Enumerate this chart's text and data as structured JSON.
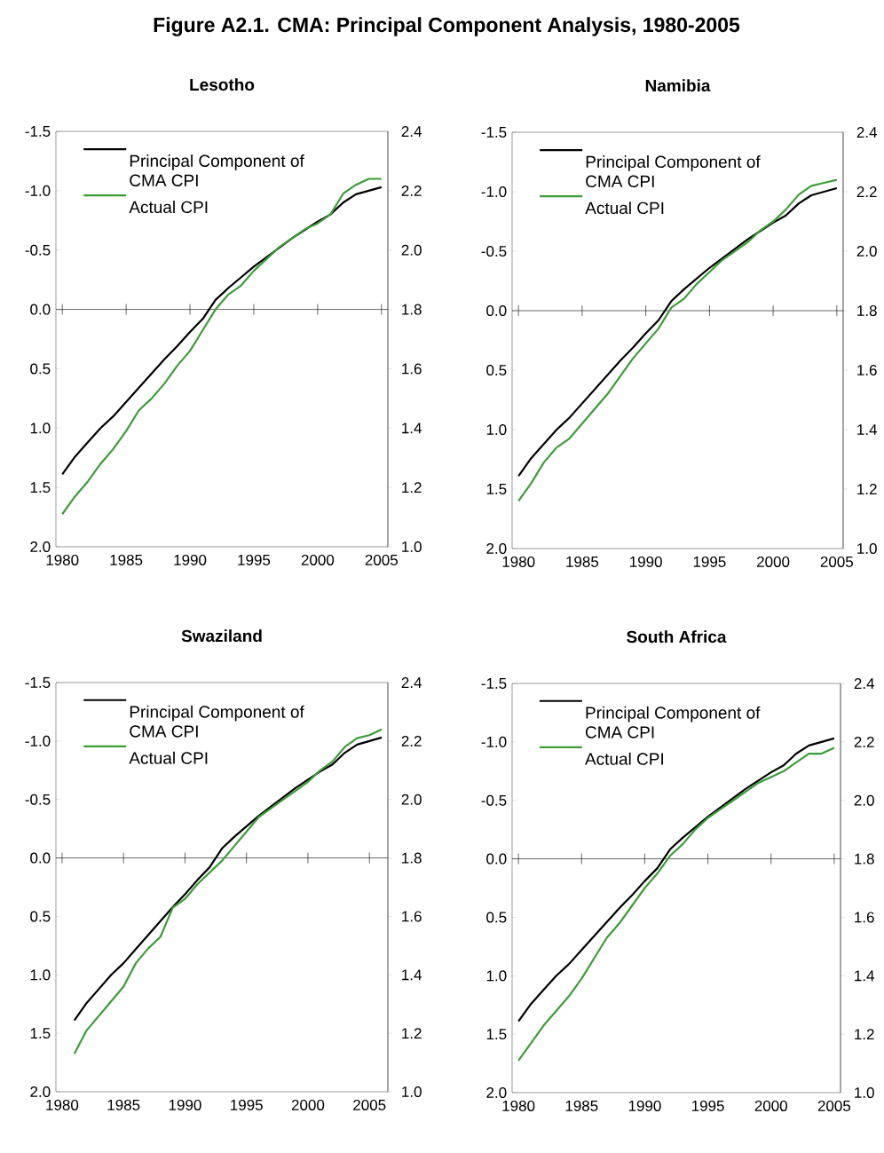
{
  "chart_data": [
    {
      "type": "line",
      "title": "Lesotho",
      "annotations": [
        "Figure A2.1. CMA: Principal Component Analysis, 1980-2005"
      ],
      "x": [
        1980,
        1981,
        1982,
        1983,
        1984,
        1985,
        1986,
        1987,
        1988,
        1989,
        1990,
        1991,
        1992,
        1993,
        1994,
        1995,
        1996,
        1997,
        1998,
        1999,
        2000,
        2001,
        2002,
        2003,
        2004,
        2005
      ],
      "series": [
        {
          "name": "Principal Component of CMA CPI",
          "color": "#000000",
          "values": [
            1.39,
            1.24,
            1.12,
            1.0,
            0.9,
            0.78,
            0.66,
            0.54,
            0.42,
            0.31,
            0.19,
            0.08,
            -0.08,
            -0.18,
            -0.27,
            -0.36,
            -0.44,
            -0.52,
            -0.6,
            -0.67,
            -0.74,
            -0.8,
            -0.9,
            -0.97,
            -1.0,
            -1.03
          ]
        },
        {
          "name": "Actual CPI",
          "color": "#3a9e35",
          "axis": "y2",
          "values": [
            1.11,
            1.17,
            1.22,
            1.28,
            1.33,
            1.39,
            1.46,
            1.5,
            1.55,
            1.61,
            1.66,
            1.73,
            1.8,
            1.85,
            1.88,
            1.93,
            1.97,
            2.01,
            2.04,
            2.07,
            2.09,
            2.12,
            2.19,
            2.22,
            2.24,
            2.24
          ]
        }
      ],
      "xlim": [
        1979.5,
        2005.5
      ],
      "xticks": [
        1980,
        1985,
        1990,
        1995,
        2000,
        2005
      ],
      "ylim": [
        2.0,
        -1.5
      ],
      "yticks": [
        {
          "value": -1.5,
          "label": "-1.5"
        },
        {
          "value": -1.0,
          "label": "-1.0"
        },
        {
          "value": -0.5,
          "label": "-0.5"
        },
        {
          "value": 0,
          "label": "0.0"
        },
        {
          "value": 0.5,
          "label": "0.5"
        },
        {
          "value": 1.0,
          "label": "1.0"
        },
        {
          "value": 1.5,
          "label": "1.5"
        },
        {
          "value": 2.0,
          "label": "2.0"
        }
      ],
      "y2lim": [
        1.0,
        2.4
      ],
      "y2ticks": [
        {
          "value": 1.0,
          "label": "1.0"
        },
        {
          "value": 1.2,
          "label": "1.2"
        },
        {
          "value": 1.4,
          "label": "1.4"
        },
        {
          "value": 1.6,
          "label": "1.6"
        },
        {
          "value": 1.8,
          "label": "1.8"
        },
        {
          "value": 2.0,
          "label": "2.0"
        },
        {
          "value": 2.2,
          "label": "2.2"
        },
        {
          "value": 2.4,
          "label": "2.4"
        }
      ],
      "ref_lines": [
        {
          "axis": "y",
          "value": 0
        }
      ],
      "legend": "top left",
      "marker": "none",
      "line_style": "solid"
    },
    {
      "type": "line",
      "title": "Namibia",
      "x": [
        1980,
        1981,
        1982,
        1983,
        1984,
        1985,
        1986,
        1987,
        1988,
        1989,
        1990,
        1991,
        1992,
        1993,
        1994,
        1995,
        1996,
        1997,
        1998,
        1999,
        2000,
        2001,
        2002,
        2003,
        2004,
        2005
      ],
      "series": [
        {
          "name": "Principal Component of CMA CPI",
          "color": "#000000",
          "values": [
            1.39,
            1.24,
            1.12,
            1.0,
            0.9,
            0.78,
            0.66,
            0.54,
            0.42,
            0.31,
            0.19,
            0.08,
            -0.08,
            -0.18,
            -0.27,
            -0.36,
            -0.44,
            -0.52,
            -0.6,
            -0.67,
            -0.74,
            -0.8,
            -0.9,
            -0.97,
            -1.0,
            -1.03
          ]
        },
        {
          "name": "Actual CPI",
          "color": "#3a9e35",
          "axis": "y2",
          "values": [
            1.16,
            1.22,
            1.29,
            1.34,
            1.37,
            1.42,
            1.47,
            1.52,
            1.58,
            1.64,
            1.69,
            1.74,
            1.81,
            1.84,
            1.89,
            1.93,
            1.97,
            2.0,
            2.03,
            2.07,
            2.1,
            2.14,
            2.19,
            2.22,
            2.23,
            2.24
          ]
        }
      ],
      "xlim": [
        1979.5,
        2005.5
      ],
      "xticks": [
        1980,
        1985,
        1990,
        1995,
        2000,
        2005
      ],
      "ylim": [
        2.0,
        -1.5
      ],
      "yticks": [
        {
          "value": -1.5,
          "label": "-1.5"
        },
        {
          "value": -1.0,
          "label": "-1.0"
        },
        {
          "value": -0.5,
          "label": "-0.5"
        },
        {
          "value": 0,
          "label": "0.0"
        },
        {
          "value": 0.5,
          "label": "0.5"
        },
        {
          "value": 1.0,
          "label": "1.0"
        },
        {
          "value": 1.5,
          "label": "1.5"
        },
        {
          "value": 2.0,
          "label": "2.0"
        }
      ],
      "y2lim": [
        1.0,
        2.4
      ],
      "y2ticks": [
        {
          "value": 1.0,
          "label": "1.0"
        },
        {
          "value": 1.2,
          "label": "1.2"
        },
        {
          "value": 1.4,
          "label": "1.4"
        },
        {
          "value": 1.6,
          "label": "1.6"
        },
        {
          "value": 1.8,
          "label": "1.8"
        },
        {
          "value": 2.0,
          "label": "2.0"
        },
        {
          "value": 2.2,
          "label": "2.2"
        },
        {
          "value": 2.4,
          "label": "2.4"
        }
      ],
      "ref_lines": [
        {
          "axis": "y",
          "value": 0
        }
      ],
      "legend": "top left",
      "marker": "none",
      "line_style": "solid"
    },
    {
      "type": "line",
      "title": "Swaziland",
      "x": [
        1981,
        1982,
        1983,
        1984,
        1985,
        1986,
        1987,
        1988,
        1989,
        1990,
        1991,
        1992,
        1993,
        1994,
        1995,
        1996,
        1997,
        1998,
        1999,
        2000,
        2001,
        2002,
        2003,
        2004,
        2005,
        2006
      ],
      "series": [
        {
          "name": "Principal Component of CMA CPI",
          "color": "#000000",
          "values": [
            1.39,
            1.24,
            1.12,
            1.0,
            0.9,
            0.78,
            0.66,
            0.54,
            0.42,
            0.31,
            0.19,
            0.08,
            -0.08,
            -0.18,
            -0.27,
            -0.36,
            -0.44,
            -0.52,
            -0.6,
            -0.67,
            -0.74,
            -0.8,
            -0.9,
            -0.97,
            -1.0,
            -1.03
          ]
        },
        {
          "name": "Actual CPI",
          "color": "#3a9e35",
          "axis": "y2",
          "values": [
            1.13,
            1.21,
            1.26,
            1.31,
            1.36,
            1.44,
            1.49,
            1.53,
            1.63,
            1.66,
            1.71,
            1.75,
            1.79,
            1.84,
            1.89,
            1.94,
            1.97,
            2.0,
            2.03,
            2.06,
            2.1,
            2.13,
            2.18,
            2.21,
            2.22,
            2.24
          ]
        }
      ],
      "xlim": [
        1979.5,
        2006.5
      ],
      "xticks": [
        1980,
        1985,
        1990,
        1995,
        2000,
        2005
      ],
      "ylim": [
        2.0,
        -1.5
      ],
      "yticks": [
        {
          "value": -1.5,
          "label": "-1.5"
        },
        {
          "value": -1.0,
          "label": "-1.0"
        },
        {
          "value": -0.5,
          "label": "-0.5"
        },
        {
          "value": 0,
          "label": "0.0"
        },
        {
          "value": 0.5,
          "label": "0.5"
        },
        {
          "value": 1.0,
          "label": "1.0"
        },
        {
          "value": 1.5,
          "label": "1.5"
        },
        {
          "value": 2.0,
          "label": "2.0"
        }
      ],
      "y2lim": [
        1.0,
        2.4
      ],
      "y2ticks": [
        {
          "value": 1.0,
          "label": "1.0"
        },
        {
          "value": 1.2,
          "label": "1.2"
        },
        {
          "value": 1.4,
          "label": "1.4"
        },
        {
          "value": 1.6,
          "label": "1.6"
        },
        {
          "value": 1.8,
          "label": "1.8"
        },
        {
          "value": 2.0,
          "label": "2.0"
        },
        {
          "value": 2.2,
          "label": "2.2"
        },
        {
          "value": 2.4,
          "label": "2.4"
        }
      ],
      "ref_lines": [
        {
          "axis": "y",
          "value": 0
        }
      ],
      "legend": "top left",
      "marker": "none",
      "line_style": "solid"
    },
    {
      "type": "line",
      "title": "South Africa",
      "x": [
        1980,
        1981,
        1982,
        1983,
        1984,
        1985,
        1986,
        1987,
        1988,
        1989,
        1990,
        1991,
        1992,
        1993,
        1994,
        1995,
        1996,
        1997,
        1998,
        1999,
        2000,
        2001,
        2002,
        2003,
        2004,
        2005
      ],
      "series": [
        {
          "name": "Principal Component of CMA CPI",
          "color": "#000000",
          "values": [
            1.39,
            1.24,
            1.12,
            1.0,
            0.9,
            0.78,
            0.66,
            0.54,
            0.42,
            0.31,
            0.19,
            0.08,
            -0.08,
            -0.18,
            -0.27,
            -0.36,
            -0.44,
            -0.52,
            -0.6,
            -0.67,
            -0.74,
            -0.8,
            -0.9,
            -0.97,
            -1.0,
            -1.03
          ]
        },
        {
          "name": "Actual CPI",
          "color": "#3a9e35",
          "axis": "y2",
          "values": [
            1.11,
            1.17,
            1.23,
            1.28,
            1.33,
            1.39,
            1.46,
            1.53,
            1.58,
            1.64,
            1.7,
            1.75,
            1.81,
            1.85,
            1.9,
            1.94,
            1.97,
            2.0,
            2.03,
            2.06,
            2.08,
            2.1,
            2.13,
            2.16,
            2.16,
            2.18
          ]
        }
      ],
      "xlim": [
        1979.5,
        2005.5
      ],
      "xticks": [
        1980,
        1985,
        1990,
        1995,
        2000,
        2005
      ],
      "ylim": [
        2.0,
        -1.5
      ],
      "yticks": [
        {
          "value": -1.5,
          "label": "-1.5"
        },
        {
          "value": -1.0,
          "label": "-1.0"
        },
        {
          "value": -0.5,
          "label": "-0.5"
        },
        {
          "value": 0,
          "label": "0.0"
        },
        {
          "value": 0.5,
          "label": "0.5"
        },
        {
          "value": 1.0,
          "label": "1.0"
        },
        {
          "value": 1.5,
          "label": "1.5"
        },
        {
          "value": 2.0,
          "label": "2.0"
        }
      ],
      "y2lim": [
        1.0,
        2.4
      ],
      "y2ticks": [
        {
          "value": 1.0,
          "label": "1.0"
        },
        {
          "value": 1.2,
          "label": "1.2"
        },
        {
          "value": 1.4,
          "label": "1.4"
        },
        {
          "value": 1.6,
          "label": "1.6"
        },
        {
          "value": 1.8,
          "label": "1.8"
        },
        {
          "value": 2.0,
          "label": "2.0"
        },
        {
          "value": 2.2,
          "label": "2.2"
        },
        {
          "value": 2.4,
          "label": "2.4"
        }
      ],
      "ref_lines": [
        {
          "axis": "y",
          "value": 0
        }
      ],
      "legend": "top left",
      "marker": "none",
      "line_style": "solid"
    }
  ]
}
